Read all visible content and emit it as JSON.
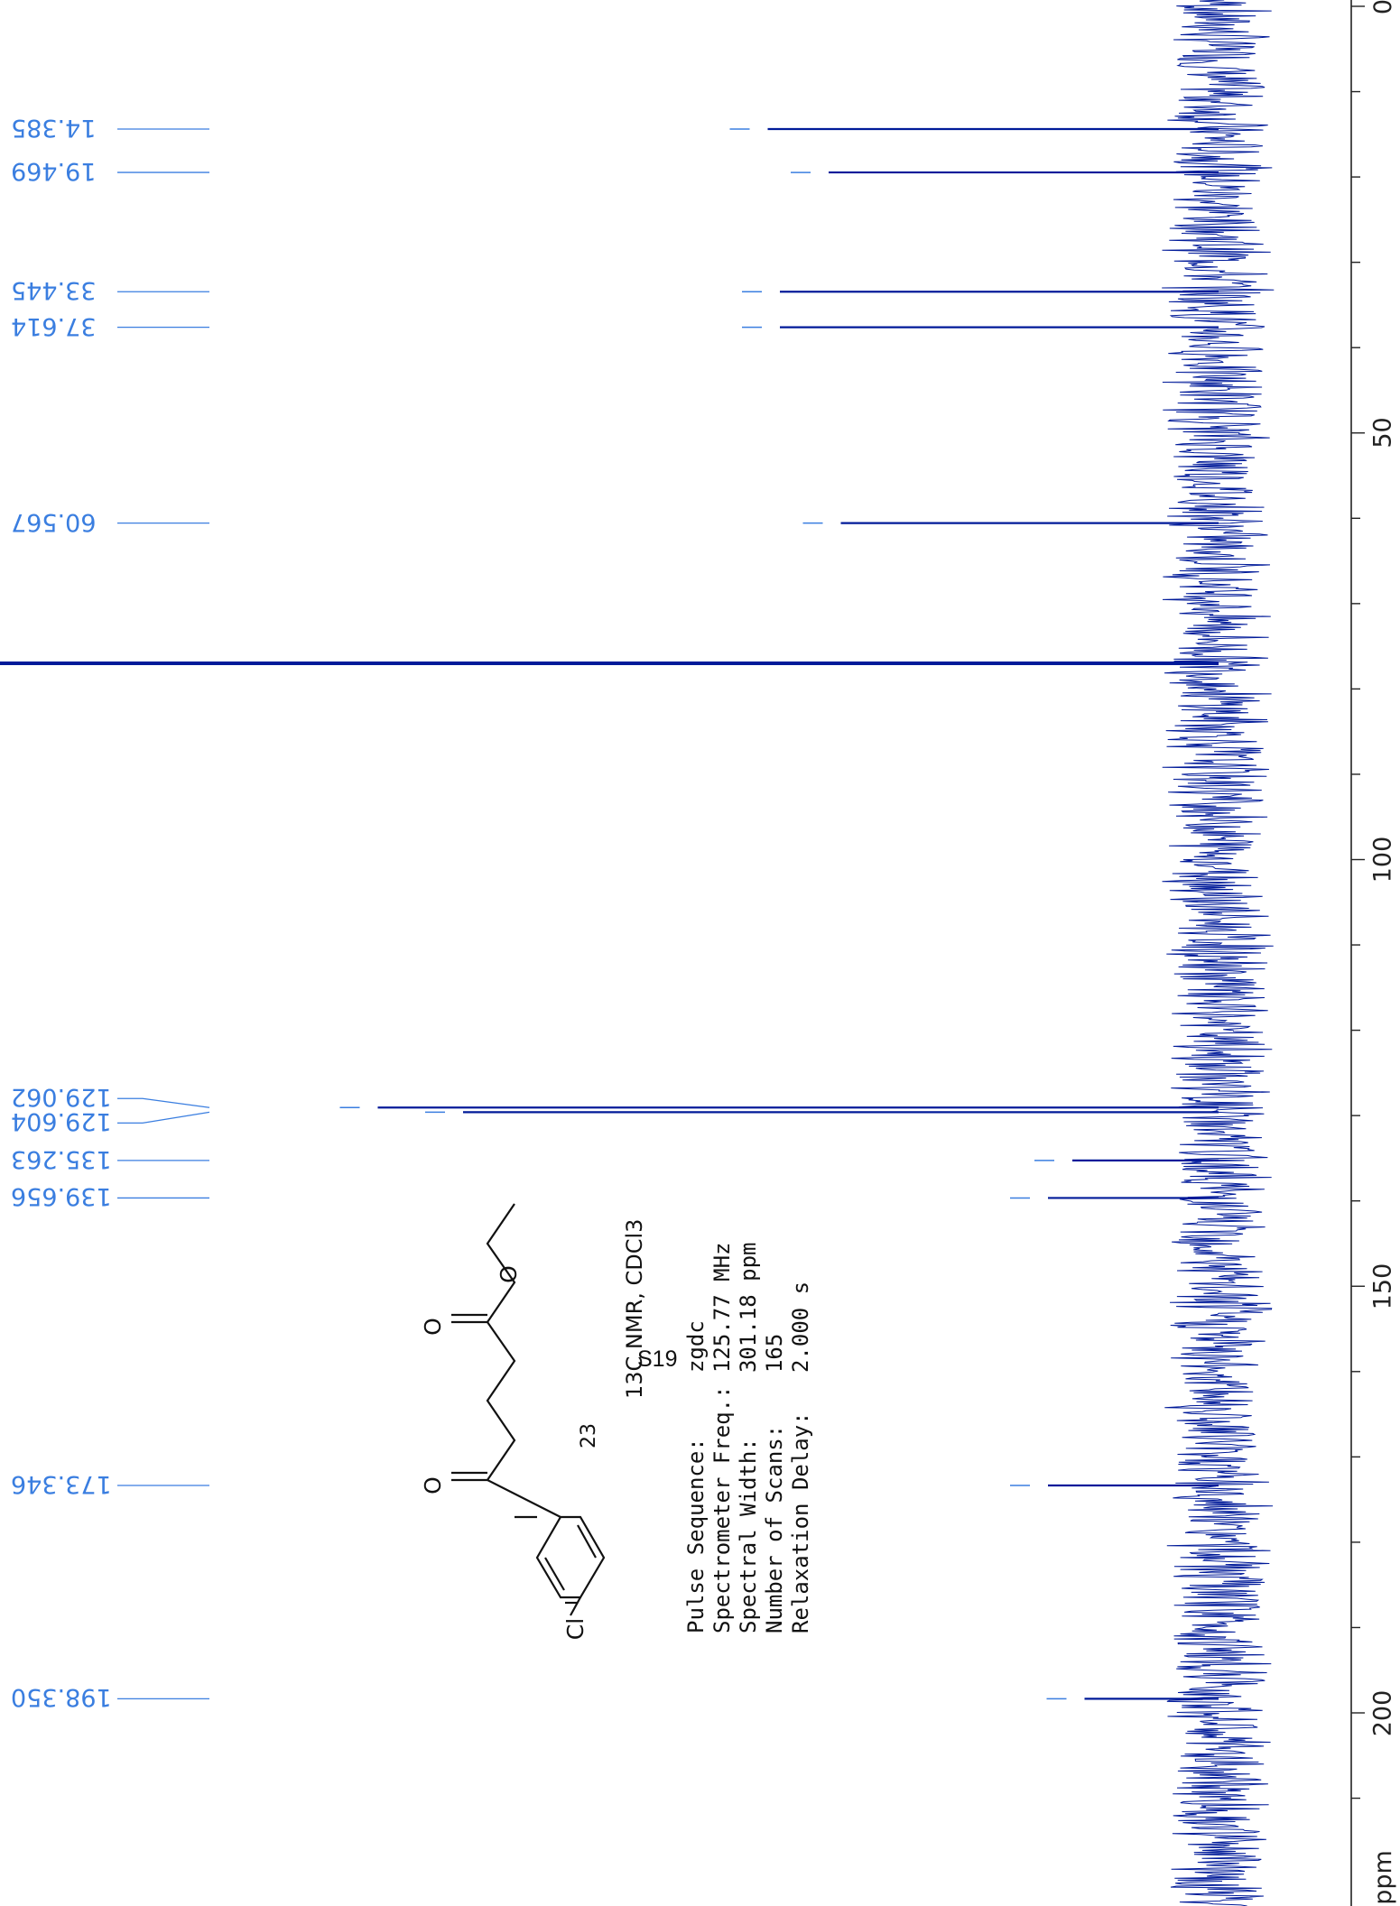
{
  "page": {
    "page_number": "S19",
    "compound_id": "23",
    "nmr_title": "13C NMR, CDCl3",
    "parameters": [
      {
        "label": "Pulse Sequence:",
        "value": "zgdc"
      },
      {
        "label": "Spectrometer Freq.:",
        "value": "125.77 MHz"
      },
      {
        "label": "Spectral Width:",
        "value": "301.18 ppm"
      },
      {
        "label": "Number of Scans:",
        "value": "165"
      },
      {
        "label": "Relaxation Delay:",
        "value": "2.000 s"
      }
    ],
    "structure_atoms": {
      "cl": "Cl",
      "o1": "O",
      "o2": "O",
      "o3": "O"
    }
  },
  "colors": {
    "spectrum": "#001a99",
    "labels": "#3a7ee0",
    "axis": "#222222"
  },
  "chart_data": {
    "type": "line",
    "orientation": "vertical-axis",
    "axis_label": "ppm",
    "ylim": [
      0,
      215
    ],
    "axis_ticks": [
      0,
      50,
      100,
      150,
      200
    ],
    "peaks": [
      {
        "ppm": 14.385,
        "label": "14.385",
        "intensity": 0.37
      },
      {
        "ppm": 19.469,
        "label": "19.469",
        "intensity": 0.32
      },
      {
        "ppm": 33.445,
        "label": "33.445",
        "intensity": 0.36
      },
      {
        "ppm": 37.614,
        "label": "37.614",
        "intensity": 0.36
      },
      {
        "ppm": 60.567,
        "label": "60.567",
        "intensity": 0.31
      },
      {
        "ppm": 77.0,
        "label": "",
        "intensity": 1.0,
        "solvent": true
      },
      {
        "ppm": 129.062,
        "label": "129.062",
        "intensity": 0.69
      },
      {
        "ppm": 129.604,
        "label": "129.604",
        "intensity": 0.62
      },
      {
        "ppm": 135.263,
        "label": "135.263",
        "intensity": 0.12
      },
      {
        "ppm": 139.656,
        "label": "139.656",
        "intensity": 0.14
      },
      {
        "ppm": 173.346,
        "label": "173.346",
        "intensity": 0.14
      },
      {
        "ppm": 198.35,
        "label": "198.350",
        "intensity": 0.11
      }
    ]
  }
}
